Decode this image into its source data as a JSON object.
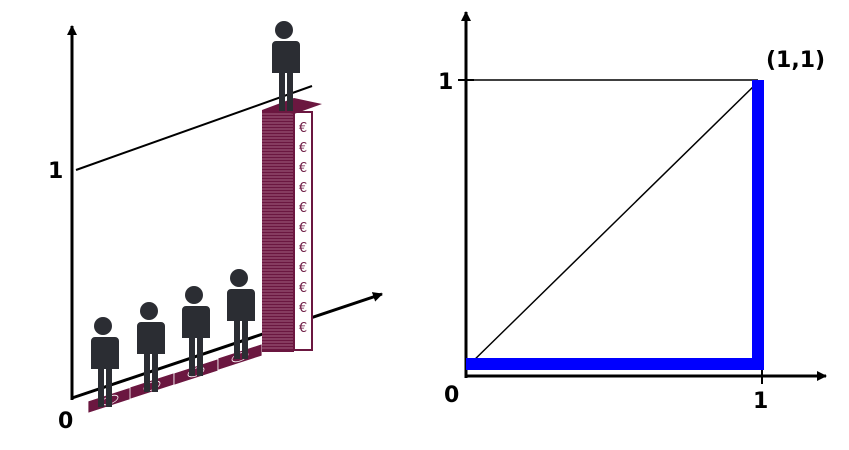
{
  "left_panel": {
    "origin_label": "0",
    "y_tick_label": "1",
    "banknote_symbol": "€",
    "person_icon": "person-icon",
    "money_stack_icon": "banknote-stack-icon",
    "ground_people_count": 4,
    "colors": {
      "figure": "#2b2d33",
      "money": "#6b1740",
      "axis": "#000000"
    }
  },
  "right_panel": {
    "origin_label": "0",
    "x_tick_label": "1",
    "y_tick_label": "1",
    "corner_point_label": "(1,1)",
    "colors": {
      "curve": "#0000ff",
      "axis": "#000000"
    }
  }
}
